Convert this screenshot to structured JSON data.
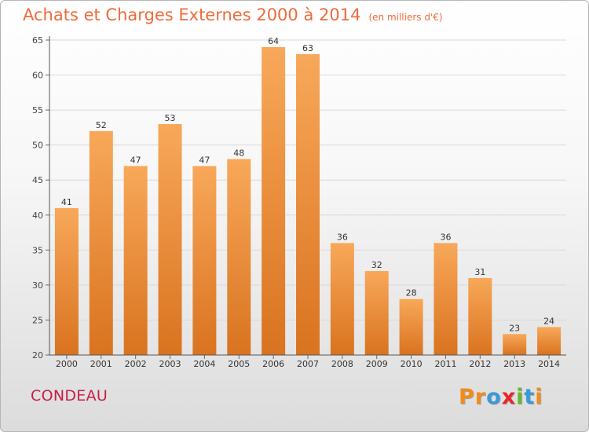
{
  "header": {
    "title": "Achats et Charges Externes 2000 à 2014",
    "subtitle": "(en milliers d'€)"
  },
  "commune": "CONDEAU",
  "brand": {
    "text": "Proxiti",
    "letter_colors": [
      "#f08c1c",
      "#f08c1c",
      "#3a9ad9",
      "#e8262a",
      "#68b82e",
      "#3a9ad9",
      "#f08c1c"
    ]
  },
  "colors": {
    "bar_top": "#f8a85a",
    "bar_bottom": "#d9731f",
    "title": "#ee6b3b",
    "commune": "#c81e4a",
    "grid": "#d9d9d9"
  },
  "chart_data": {
    "type": "bar",
    "title": "Achats et Charges Externes 2000 à 2014",
    "subtitle": "(en milliers d'€)",
    "categories": [
      "2000",
      "2001",
      "2002",
      "2003",
      "2004",
      "2005",
      "2006",
      "2007",
      "2008",
      "2009",
      "2010",
      "2011",
      "2012",
      "2013",
      "2014"
    ],
    "values": [
      41,
      52,
      47,
      53,
      47,
      48,
      64,
      63,
      36,
      32,
      28,
      36,
      31,
      23,
      24
    ],
    "ylim": [
      20,
      65
    ],
    "yticks": [
      20,
      25,
      30,
      35,
      40,
      45,
      50,
      55,
      60,
      65
    ],
    "grid": true,
    "legend": "none",
    "xlabel": "",
    "ylabel": ""
  }
}
